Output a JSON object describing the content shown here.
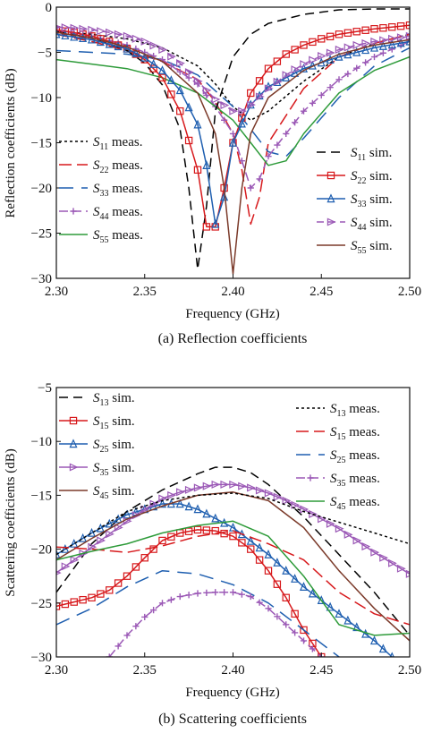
{
  "chart_data": [
    {
      "type": "line",
      "caption": "(a) Reflection coefficients",
      "xlabel": "Frequency (GHz)",
      "ylabel": "Reflection coefficients (dB)",
      "xlim": [
        2.3,
        2.5
      ],
      "ylim": [
        -30,
        0
      ],
      "xticks": [
        "2.30",
        "2.35",
        "2.40",
        "2.45",
        "2.50"
      ],
      "yticks": [
        "0",
        "−5",
        "−10",
        "−15",
        "−20",
        "−25",
        "−30"
      ],
      "legend_left": "lower-left",
      "legend_right": "lower-right",
      "series": [
        {
          "id": "s11m",
          "label_base": "S",
          "label_sub": "11",
          "label_rest": " meas.",
          "color": "#000000",
          "dash": "3,3",
          "marker": "none",
          "side": "left",
          "x": [
            2.3,
            2.32,
            2.34,
            2.36,
            2.38,
            2.39,
            2.4,
            2.41,
            2.42,
            2.44,
            2.46,
            2.48,
            2.5
          ],
          "y": [
            -2.6,
            -3.0,
            -3.5,
            -4.5,
            -6.5,
            -8.5,
            -11.0,
            -12.5,
            -11.5,
            -8.2,
            -5.5,
            -4.0,
            -3.0
          ]
        },
        {
          "id": "s22m",
          "label_base": "S",
          "label_sub": "22",
          "label_rest": " meas.",
          "color": "#d7191c",
          "dash": "14,6",
          "marker": "none",
          "side": "left",
          "x": [
            2.3,
            2.32,
            2.34,
            2.36,
            2.38,
            2.39,
            2.4,
            2.405,
            2.41,
            2.415,
            2.42,
            2.44,
            2.46,
            2.48,
            2.5
          ],
          "y": [
            -3.0,
            -3.8,
            -4.8,
            -6.0,
            -8.0,
            -10.5,
            -14.0,
            -18.0,
            -24.0,
            -21.0,
            -15.0,
            -9.0,
            -5.5,
            -4.0,
            -3.0
          ]
        },
        {
          "id": "s33m",
          "label_base": "S",
          "label_sub": "33",
          "label_rest": " meas.",
          "color": "#1f5fb0",
          "dash": "16,9",
          "marker": "none",
          "side": "left",
          "x": [
            2.3,
            2.32,
            2.34,
            2.36,
            2.38,
            2.4,
            2.41,
            2.42,
            2.43,
            2.44,
            2.46,
            2.48,
            2.5
          ],
          "y": [
            -4.8,
            -5.0,
            -5.2,
            -5.8,
            -7.5,
            -11.0,
            -13.5,
            -16.0,
            -16.5,
            -14.5,
            -10.0,
            -6.5,
            -4.5
          ]
        },
        {
          "id": "s44m",
          "label_base": "S",
          "label_sub": "44",
          "label_rest": " meas.",
          "color": "#9b59b6",
          "dash": "10,5",
          "marker": "plus",
          "side": "left",
          "x": [
            2.3,
            2.32,
            2.34,
            2.36,
            2.38,
            2.39,
            2.4,
            2.405,
            2.41,
            2.415,
            2.42,
            2.44,
            2.46,
            2.48,
            2.5
          ],
          "y": [
            -2.6,
            -3.2,
            -4.2,
            -5.8,
            -8.5,
            -11.0,
            -14.0,
            -17.0,
            -20.0,
            -19.0,
            -16.5,
            -11.5,
            -8.0,
            -5.5,
            -3.8
          ]
        },
        {
          "id": "s55m",
          "label_base": "S",
          "label_sub": "55",
          "label_rest": " meas.",
          "color": "#2e9b3a",
          "dash": "",
          "marker": "none",
          "side": "left",
          "x": [
            2.3,
            2.32,
            2.34,
            2.36,
            2.38,
            2.4,
            2.41,
            2.42,
            2.43,
            2.44,
            2.46,
            2.48,
            2.5
          ],
          "y": [
            -5.8,
            -6.3,
            -6.8,
            -7.8,
            -9.5,
            -12.5,
            -15.0,
            -17.5,
            -17.0,
            -14.0,
            -9.5,
            -7.0,
            -5.5
          ]
        },
        {
          "id": "s11s",
          "label_base": "S",
          "label_sub": "11",
          "label_rest": " sim.",
          "color": "#000000",
          "dash": "10,6",
          "marker": "none",
          "side": "right",
          "x": [
            2.3,
            2.32,
            2.34,
            2.35,
            2.36,
            2.37,
            2.375,
            2.38,
            2.385,
            2.39,
            2.4,
            2.41,
            2.42,
            2.44,
            2.46,
            2.48,
            2.5
          ],
          "y": [
            -2.7,
            -3.4,
            -4.8,
            -6.2,
            -8.6,
            -13.5,
            -20.0,
            -29.0,
            -22.0,
            -11.5,
            -5.5,
            -3.0,
            -1.8,
            -0.8,
            -0.3,
            -0.2,
            -0.2
          ]
        },
        {
          "id": "s22s",
          "label_base": "S",
          "label_sub": "22",
          "label_rest": " sim.",
          "color": "#d7191c",
          "dash": "",
          "marker": "square",
          "side": "right",
          "x": [
            2.3,
            2.31,
            2.32,
            2.33,
            2.34,
            2.35,
            2.36,
            2.37,
            2.38,
            2.385,
            2.39,
            2.395,
            2.4,
            2.41,
            2.42,
            2.43,
            2.44,
            2.45,
            2.46,
            2.47,
            2.48,
            2.49,
            2.5
          ],
          "y": [
            -2.5,
            -2.8,
            -3.2,
            -3.8,
            -4.6,
            -5.8,
            -7.8,
            -11.5,
            -18.0,
            -24.3,
            -24.3,
            -20.0,
            -15.0,
            -9.5,
            -6.8,
            -5.2,
            -4.2,
            -3.5,
            -3.0,
            -2.7,
            -2.4,
            -2.2,
            -2.0
          ]
        },
        {
          "id": "s33s",
          "label_base": "S",
          "label_sub": "33",
          "label_rest": " sim.",
          "color": "#1f5fb0",
          "dash": "",
          "marker": "triangle",
          "side": "right",
          "x": [
            2.3,
            2.32,
            2.34,
            2.35,
            2.36,
            2.37,
            2.38,
            2.385,
            2.39,
            2.395,
            2.4,
            2.41,
            2.42,
            2.44,
            2.46,
            2.48,
            2.5
          ],
          "y": [
            -3.0,
            -3.6,
            -4.6,
            -5.6,
            -7.0,
            -9.2,
            -13.0,
            -17.5,
            -24.0,
            -21.0,
            -15.0,
            -10.8,
            -8.8,
            -6.8,
            -5.5,
            -4.5,
            -3.8
          ]
        },
        {
          "id": "s44s",
          "label_base": "S",
          "label_sub": "44",
          "label_rest": " sim.",
          "color": "#9b59b6",
          "dash": "8,5",
          "marker": "triangle-right",
          "side": "right",
          "x": [
            2.3,
            2.31,
            2.32,
            2.33,
            2.34,
            2.35,
            2.36,
            2.37,
            2.38,
            2.39,
            2.4,
            2.405,
            2.41,
            2.42,
            2.43,
            2.44,
            2.45,
            2.46,
            2.47,
            2.48,
            2.49,
            2.5
          ],
          "y": [
            -2.2,
            -2.3,
            -2.5,
            -2.8,
            -3.2,
            -3.8,
            -4.7,
            -6.2,
            -8.2,
            -10.2,
            -11.5,
            -11.5,
            -10.8,
            -9.0,
            -7.5,
            -6.3,
            -5.4,
            -4.7,
            -4.2,
            -3.8,
            -3.5,
            -3.2
          ]
        },
        {
          "id": "s55s",
          "label_base": "S",
          "label_sub": "55",
          "label_rest": " sim.",
          "color": "#7b3a2a",
          "dash": "",
          "marker": "none",
          "side": "right",
          "x": [
            2.3,
            2.32,
            2.34,
            2.36,
            2.38,
            2.39,
            2.395,
            2.4,
            2.405,
            2.41,
            2.42,
            2.44,
            2.46,
            2.48,
            2.5
          ],
          "y": [
            -2.8,
            -3.4,
            -4.4,
            -6.0,
            -9.5,
            -14.0,
            -20.0,
            -29.5,
            -20.0,
            -14.0,
            -10.0,
            -7.0,
            -5.2,
            -4.2,
            -3.6
          ]
        }
      ]
    },
    {
      "type": "line",
      "caption": "(b) Scattering coefficients",
      "xlabel": "Frequency (GHz)",
      "ylabel": "Scattering coefficients (dB)",
      "xlim": [
        2.3,
        2.5
      ],
      "ylim": [
        -30,
        -5
      ],
      "xticks": [
        "2.30",
        "2.35",
        "2.40",
        "2.45",
        "2.50"
      ],
      "yticks": [
        "−5",
        "−10",
        "−15",
        "−20",
        "−25",
        "−30"
      ],
      "legend_left": "upper-left",
      "legend_right": "upper-right",
      "series": [
        {
          "id": "s13s",
          "label_base": "S",
          "label_sub": "13",
          "label_rest": " sim.",
          "color": "#000000",
          "dash": "10,6",
          "marker": "none",
          "side": "left",
          "x": [
            2.3,
            2.32,
            2.34,
            2.36,
            2.38,
            2.39,
            2.4,
            2.41,
            2.42,
            2.44,
            2.46,
            2.48,
            2.5
          ],
          "y": [
            -24.0,
            -19.5,
            -16.5,
            -14.5,
            -13.0,
            -12.4,
            -12.4,
            -12.9,
            -14.0,
            -17.0,
            -20.5,
            -24.0,
            -28.0
          ]
        },
        {
          "id": "s15s",
          "label_base": "S",
          "label_sub": "15",
          "label_rest": " sim.",
          "color": "#d7191c",
          "dash": "",
          "marker": "square",
          "side": "left",
          "x": [
            2.3,
            2.31,
            2.32,
            2.33,
            2.34,
            2.35,
            2.36,
            2.37,
            2.38,
            2.39,
            2.4,
            2.41,
            2.42,
            2.43,
            2.44,
            2.45
          ],
          "y": [
            -25.3,
            -24.9,
            -24.5,
            -23.8,
            -22.5,
            -20.8,
            -19.2,
            -18.5,
            -18.2,
            -18.3,
            -18.8,
            -20.0,
            -22.0,
            -24.5,
            -27.5,
            -30.0
          ]
        },
        {
          "id": "s25s",
          "label_base": "S",
          "label_sub": "25",
          "label_rest": " sim.",
          "color": "#1f5fb0",
          "dash": "",
          "marker": "triangle",
          "side": "left",
          "x": [
            2.3,
            2.32,
            2.34,
            2.36,
            2.37,
            2.38,
            2.4,
            2.42,
            2.44,
            2.46,
            2.48,
            2.49
          ],
          "y": [
            -20.5,
            -18.5,
            -16.8,
            -15.8,
            -15.8,
            -16.3,
            -18.0,
            -20.5,
            -23.5,
            -26.0,
            -28.5,
            -30.0
          ]
        },
        {
          "id": "s35s",
          "label_base": "S",
          "label_sub": "35",
          "label_rest": " sim.",
          "color": "#9b59b6",
          "dash": "",
          "marker": "triangle-right",
          "side": "left",
          "x": [
            2.3,
            2.31,
            2.32,
            2.33,
            2.34,
            2.35,
            2.36,
            2.37,
            2.38,
            2.39,
            2.4,
            2.41,
            2.42,
            2.43,
            2.44,
            2.45,
            2.46,
            2.47,
            2.48,
            2.49,
            2.5
          ],
          "y": [
            -22.2,
            -21.0,
            -19.8,
            -18.6,
            -17.4,
            -16.3,
            -15.3,
            -14.7,
            -14.3,
            -14.0,
            -14.0,
            -14.3,
            -14.8,
            -15.5,
            -16.3,
            -17.2,
            -18.1,
            -19.2,
            -20.3,
            -21.3,
            -22.3
          ]
        },
        {
          "id": "s45s",
          "label_base": "S",
          "label_sub": "45",
          "label_rest": " sim.",
          "color": "#7b3a2a",
          "dash": "",
          "marker": "none",
          "side": "left",
          "x": [
            2.3,
            2.32,
            2.34,
            2.36,
            2.38,
            2.4,
            2.42,
            2.44,
            2.46,
            2.48,
            2.5
          ],
          "y": [
            -21.0,
            -19.0,
            -17.2,
            -16.0,
            -15.0,
            -14.7,
            -15.5,
            -18.0,
            -22.0,
            -25.5,
            -28.5
          ]
        },
        {
          "id": "s13m",
          "label_base": "S",
          "label_sub": "13",
          "label_rest": " meas.",
          "color": "#000000",
          "dash": "3,3",
          "marker": "none",
          "side": "right",
          "x": [
            2.3,
            2.32,
            2.34,
            2.36,
            2.38,
            2.4,
            2.42,
            2.44,
            2.46,
            2.48,
            2.5
          ],
          "y": [
            -20.5,
            -18.5,
            -16.5,
            -15.5,
            -15.0,
            -14.8,
            -15.3,
            -16.5,
            -17.5,
            -18.5,
            -19.5
          ]
        },
        {
          "id": "s15m",
          "label_base": "S",
          "label_sub": "15",
          "label_rest": " meas.",
          "color": "#d7191c",
          "dash": "14,6",
          "marker": "none",
          "side": "right",
          "x": [
            2.3,
            2.32,
            2.34,
            2.36,
            2.38,
            2.4,
            2.42,
            2.44,
            2.46,
            2.48,
            2.5
          ],
          "y": [
            -19.8,
            -20.0,
            -20.3,
            -19.7,
            -18.8,
            -18.3,
            -19.5,
            -21.0,
            -24.0,
            -26.0,
            -27.0
          ]
        },
        {
          "id": "s25m",
          "label_base": "S",
          "label_sub": "25",
          "label_rest": " meas.",
          "color": "#1f5fb0",
          "dash": "16,9",
          "marker": "none",
          "side": "right",
          "x": [
            2.3,
            2.32,
            2.34,
            2.36,
            2.38,
            2.4,
            2.42,
            2.44,
            2.46
          ],
          "y": [
            -27.0,
            -25.5,
            -23.5,
            -22.0,
            -22.3,
            -23.3,
            -25.0,
            -27.5,
            -30.0
          ]
        },
        {
          "id": "s35m",
          "label_base": "S",
          "label_sub": "35",
          "label_rest": " meas.",
          "color": "#9b59b6",
          "dash": "10,5",
          "marker": "plus",
          "side": "right",
          "x": [
            2.33,
            2.34,
            2.35,
            2.36,
            2.37,
            2.38,
            2.39,
            2.4,
            2.41,
            2.42,
            2.43,
            2.44,
            2.45
          ],
          "y": [
            -30.0,
            -28.0,
            -26.3,
            -25.0,
            -24.4,
            -24.1,
            -24.0,
            -24.0,
            -24.4,
            -25.5,
            -27.0,
            -28.5,
            -30.0
          ]
        },
        {
          "id": "s45m",
          "label_base": "S",
          "label_sub": "45",
          "label_rest": " meas.",
          "color": "#2e9b3a",
          "dash": "",
          "marker": "none",
          "side": "right",
          "x": [
            2.3,
            2.32,
            2.34,
            2.36,
            2.38,
            2.4,
            2.42,
            2.44,
            2.46,
            2.48,
            2.5
          ],
          "y": [
            -21.0,
            -20.2,
            -19.5,
            -18.5,
            -17.8,
            -17.4,
            -18.8,
            -22.5,
            -27.0,
            -28.0,
            -27.8
          ]
        }
      ]
    }
  ]
}
